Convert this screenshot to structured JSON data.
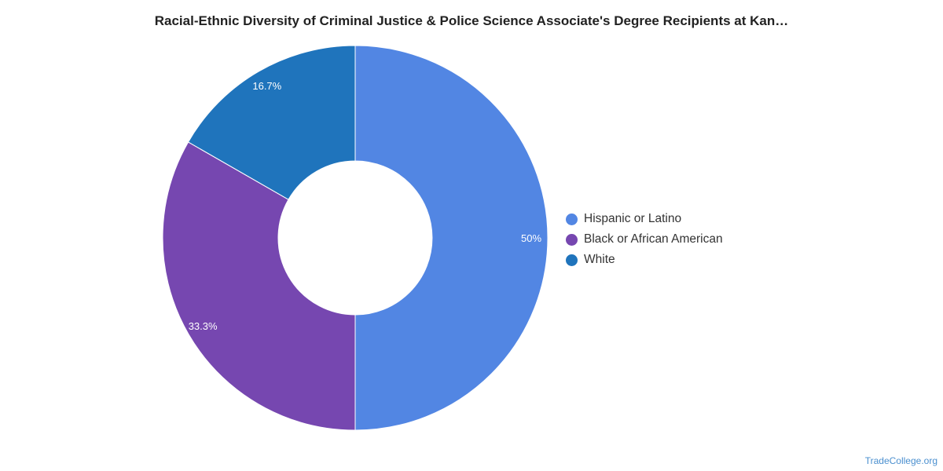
{
  "chart_data": {
    "type": "pie",
    "title": "Racial-Ethnic Diversity of Criminal Justice & Police Science Associate's Degree Recipients at Kan…",
    "categories": [
      "Hispanic or Latino",
      "Black or African American",
      "White"
    ],
    "values": [
      50,
      33.3,
      16.7
    ],
    "data_labels": [
      "50%",
      "33.3%",
      "16.7%"
    ],
    "colors": [
      "#5286e3",
      "#7647b0",
      "#1f74bc"
    ],
    "legend_position": "right",
    "donut": true
  },
  "watermark": "TradeCollege.org"
}
